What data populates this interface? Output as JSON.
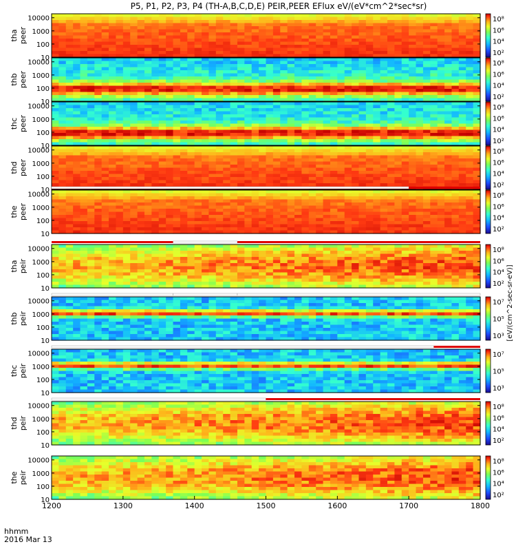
{
  "title": "P5, P1, P2, P3, P4 (TH-A,B,C,D,E) PEIR,PEER EFlux eV/(eV*cm^2*sec*sr)",
  "footer": {
    "hhmm": "hhmm",
    "date": "2016 Mar 13"
  },
  "colorbar_unit": "[eV/(cm^2-sec-sr-eV)]",
  "chart_data": {
    "type": "heatmap",
    "x": {
      "ticks": [
        1200,
        1300,
        1400,
        1500,
        1600,
        1700,
        1800
      ],
      "tick_labels": [
        "1200",
        "1300",
        "1400",
        "1500",
        "1600",
        "1700",
        "1800"
      ],
      "range": [
        1200,
        1800
      ]
    },
    "y": {
      "scale": "log",
      "range": [
        10,
        20000
      ],
      "ticks": [
        10,
        100,
        1000,
        10000
      ],
      "tick_labels": [
        "10",
        "100",
        "1000",
        "10000"
      ]
    },
    "colorbar": {
      "scale": "log",
      "colors": [
        "#1b0a8f",
        "#1d4cff",
        "#12b7ff",
        "#33ffd0",
        "#7dff55",
        "#e7ff2a",
        "#ffb21a",
        "#ff3a12",
        "#c40000"
      ]
    },
    "panels": [
      {
        "label_top": "tha",
        "label_bottom": "peer",
        "cb_labels": [
          "10⁸",
          "10⁶",
          "10⁴",
          "10²"
        ],
        "mode": "hot",
        "flag_bar": null
      },
      {
        "label_top": "thb",
        "label_bottom": "peer",
        "cb_labels": [
          "10⁸",
          "10⁶",
          "10⁴",
          "10²"
        ],
        "mode": "band",
        "flag_bar": null
      },
      {
        "label_top": "thc",
        "label_bottom": "peer",
        "cb_labels": [
          "10⁸",
          "10⁶",
          "10⁴",
          "10²"
        ],
        "mode": "band",
        "flag_bar": null
      },
      {
        "label_top": "thd",
        "label_bottom": "peer",
        "cb_labels": [
          "10⁸",
          "10⁶",
          "10⁴",
          "10²"
        ],
        "mode": "hot",
        "flag_bar": null
      },
      {
        "label_top": "the",
        "label_bottom": "peer",
        "cb_labels": [
          "10⁸",
          "10⁶",
          "10⁴",
          "10²"
        ],
        "mode": "hot",
        "flag_bar": [
          [
            1200,
            1700,
            "#ffffff"
          ],
          [
            1700,
            1800,
            "#dd0000"
          ]
        ]
      },
      {
        "label_top": "tha",
        "label_bottom": "peir",
        "cb_labels": [
          "10⁸",
          "10⁶",
          "10⁴",
          "10²"
        ],
        "mode": "ion",
        "flag_bar": [
          [
            1200,
            1370,
            "#dd0000"
          ],
          [
            1370,
            1460,
            "#ffffff"
          ],
          [
            1460,
            1800,
            "#dd0000"
          ]
        ]
      },
      {
        "label_top": "thb",
        "label_bottom": "peir",
        "cb_labels": [
          "10⁷",
          "10⁵",
          "10³"
        ],
        "mode": "ionband",
        "flag_bar": [
          [
            1200,
            1370,
            "#ffffff"
          ],
          [
            1370,
            1460,
            "#ffffff"
          ],
          [
            1460,
            1800,
            "#ffffff"
          ]
        ]
      },
      {
        "label_top": "thc",
        "label_bottom": "peir",
        "cb_labels": [
          "10⁷",
          "10⁵",
          "10³"
        ],
        "mode": "ionband",
        "flag_bar": [
          [
            1200,
            1735,
            "#ffffff"
          ],
          [
            1735,
            1800,
            "#dd0000"
          ]
        ]
      },
      {
        "label_top": "thd",
        "label_bottom": "peir",
        "cb_labels": [
          "10⁸",
          "10⁶",
          "10⁴",
          "10²"
        ],
        "mode": "ion",
        "flag_bar": [
          [
            1200,
            1500,
            "#ffffff"
          ],
          [
            1500,
            1800,
            "#dd0000"
          ]
        ]
      },
      {
        "label_top": "the",
        "label_bottom": "peir",
        "cb_labels": [
          "10⁸",
          "10⁶",
          "10⁴",
          "10²"
        ],
        "mode": "ion",
        "flag_bar": null
      }
    ]
  }
}
